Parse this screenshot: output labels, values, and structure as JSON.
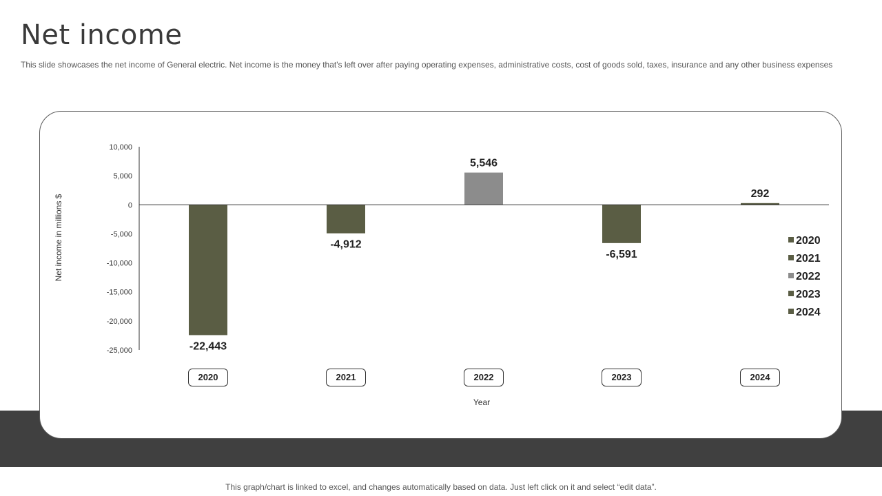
{
  "slide": {
    "title": "Net income",
    "subtitle": "This slide showcases the net income of General electric. Net income is the money that's left over after paying operating expenses, administrative costs, cost of goods sold, taxes, insurance and any other business expenses",
    "footer": "This graph/chart is linked to excel, and changes automatically based on data. Just left click on it and select “edit data”."
  },
  "colors": {
    "negative_bar": "#5a5d44",
    "positive_bar": "#8c8c8c",
    "band": "#404040",
    "text": "#222222"
  },
  "chart_data": {
    "type": "bar",
    "categories": [
      "2020",
      "2021",
      "2022",
      "2023",
      "2024"
    ],
    "values": [
      -22443,
      -4912,
      5546,
      -6591,
      292
    ],
    "data_labels": [
      "-22,443",
      "-4,912",
      "5,546",
      "-6,591",
      "292"
    ],
    "bar_colors": [
      "#5a5d44",
      "#5a5d44",
      "#8c8c8c",
      "#5a5d44",
      "#5a5d44"
    ],
    "title": "",
    "xlabel": "Year",
    "ylabel": "Net income in millions $",
    "ylim": [
      -25000,
      10000
    ],
    "yticks": [
      10000,
      5000,
      0,
      -5000,
      -10000,
      -15000,
      -20000,
      -25000
    ],
    "ytick_labels": [
      "10,000",
      "5,000",
      "0",
      "-5,000",
      "-10,000",
      "-15,000",
      "-20,000",
      "-25,000"
    ],
    "legend": [
      "2020",
      "2021",
      "2022",
      "2023",
      "2024"
    ],
    "legend_position": "right",
    "grid": false
  }
}
